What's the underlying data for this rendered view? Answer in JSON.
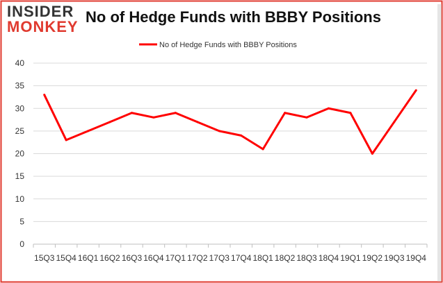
{
  "logo": {
    "top_text": "INSIDER",
    "bottom_text": "MONKEY"
  },
  "chart_data": {
    "type": "line",
    "title": "No of Hedge Funds with BBBY Positions",
    "xlabel": "",
    "ylabel": "",
    "categories": [
      "15Q3",
      "15Q4",
      "16Q1",
      "16Q2",
      "16Q3",
      "16Q4",
      "17Q1",
      "17Q2",
      "17Q3",
      "17Q4",
      "18Q1",
      "18Q2",
      "18Q3",
      "18Q4",
      "19Q1",
      "19Q2",
      "19Q3",
      "19Q4"
    ],
    "series": [
      {
        "name": "No of Hedge Funds with BBBY Positions",
        "values": [
          33,
          23,
          25,
          27,
          29,
          28,
          29,
          27,
          25,
          24,
          21,
          29,
          28,
          30,
          29,
          20,
          27,
          34
        ],
        "color": "#ff0000"
      }
    ],
    "ylim": [
      0,
      40
    ],
    "yticks": [
      0,
      5,
      10,
      15,
      20,
      25,
      30,
      35,
      40
    ],
    "grid": "horizontal",
    "legend": "top-center",
    "colors": {
      "frame": "#e03a2f",
      "grid": "#d9d9d9",
      "text": "#333333"
    }
  }
}
